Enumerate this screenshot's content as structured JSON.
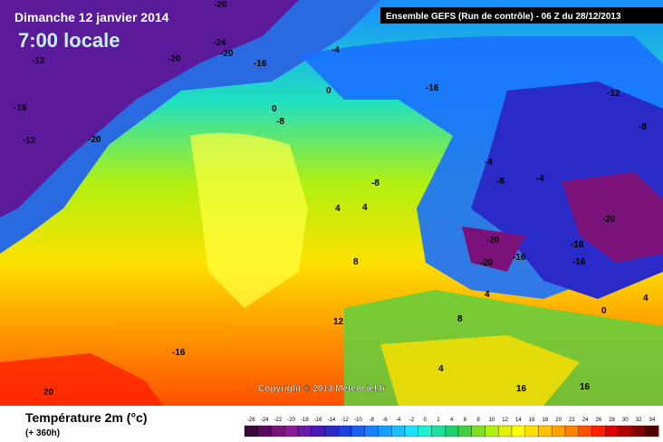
{
  "header": {
    "date": "Dimanche 12 janvier 2014",
    "time": "7:00 locale",
    "run": "Ensemble GEFS (Run de contrôle)  -  06 Z du 28/12/2013"
  },
  "copyright": "Copyright © 2013 Meteociel.fr",
  "legend": {
    "title": "Température 2m (°c)",
    "subtitle": "(+ 360h)",
    "scale": [
      -26,
      -24,
      -22,
      -20,
      -18,
      -16,
      -14,
      -12,
      -10,
      -8,
      -6,
      -4,
      -2,
      0,
      2,
      4,
      6,
      8,
      10,
      12,
      14,
      16,
      18,
      20,
      22,
      24,
      26,
      28,
      30,
      32,
      34
    ],
    "colors": [
      "#3a0a3a",
      "#5a0a5a",
      "#7a127a",
      "#8c1a9a",
      "#6a1aa8",
      "#4a1ab8",
      "#2a2ac8",
      "#1a40e0",
      "#1a60f0",
      "#1a80ff",
      "#1aa0ff",
      "#1ac0ff",
      "#1ae0ff",
      "#20f0d0",
      "#20e0a0",
      "#20d070",
      "#40d040",
      "#80e020",
      "#b0f010",
      "#e0f000",
      "#ffff00",
      "#ffe000",
      "#ffc000",
      "#ffa000",
      "#ff8000",
      "#ff5000",
      "#ff2000",
      "#e00000",
      "#b00000",
      "#800000",
      "#500000"
    ]
  },
  "contour_labels": [
    -20,
    -24,
    -20,
    -16,
    -20,
    -12,
    -20,
    -12,
    -16,
    -4,
    0,
    -8,
    0,
    -4,
    -8,
    4,
    4,
    8,
    12,
    -16,
    -12,
    -8,
    -4,
    -8,
    -20,
    -20,
    -16,
    -16,
    -20,
    -16,
    0,
    4,
    4,
    8,
    16,
    16,
    4,
    -16,
    20
  ]
}
